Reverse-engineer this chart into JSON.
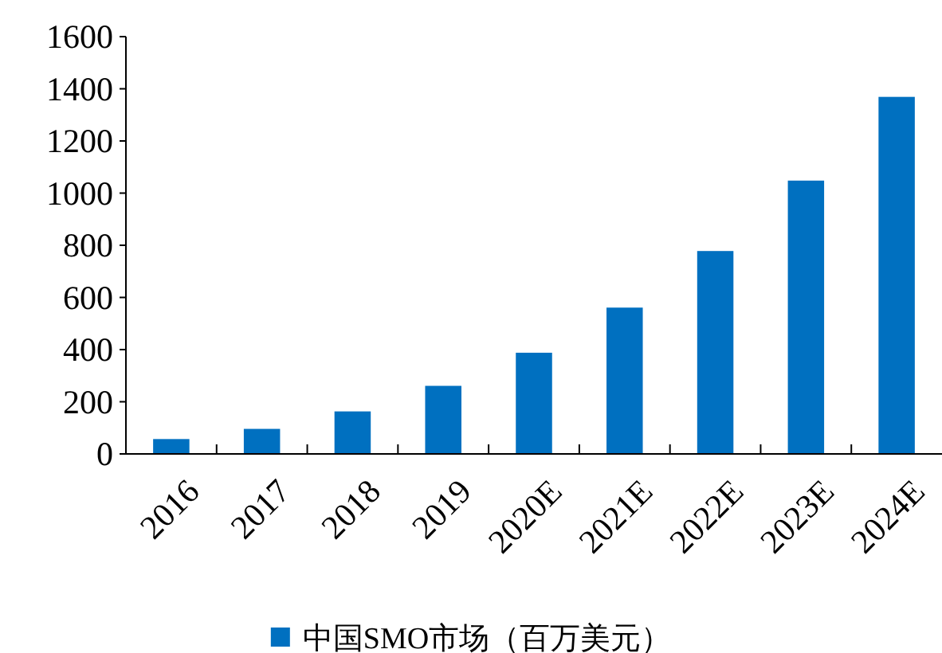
{
  "chart_data": {
    "type": "bar",
    "categories": [
      "2016",
      "2017",
      "2018",
      "2019",
      "2020E",
      "2021E",
      "2022E",
      "2023E",
      "2024E"
    ],
    "series": [
      {
        "name": "中国SMO市场（百万美元）",
        "color": "#0070c0",
        "values": [
          57,
          96,
          163,
          261,
          388,
          561,
          778,
          1048,
          1369
        ]
      }
    ],
    "ylim": [
      0,
      1600
    ],
    "yticks": [
      0,
      200,
      400,
      600,
      800,
      1000,
      1200,
      1400,
      1600
    ],
    "grid": false,
    "legend": "bottom"
  }
}
